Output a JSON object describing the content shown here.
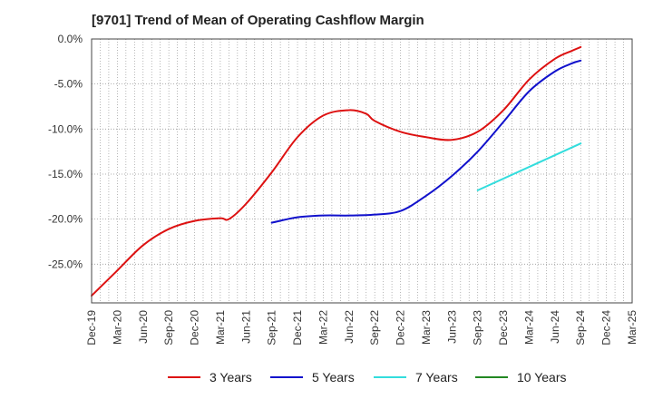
{
  "chart_data": {
    "type": "line",
    "title": "[9701]  Trend of Mean of Operating Cashflow Margin",
    "xlabel": "",
    "ylabel": "",
    "x_ticks": [
      "Dec-19",
      "Mar-20",
      "Jun-20",
      "Sep-20",
      "Dec-20",
      "Mar-21",
      "Jun-21",
      "Sep-21",
      "Dec-21",
      "Mar-22",
      "Jun-22",
      "Sep-22",
      "Dec-22",
      "Mar-23",
      "Jun-23",
      "Sep-23",
      "Dec-23",
      "Mar-24",
      "Jun-24",
      "Sep-24",
      "Dec-24",
      "Mar-25"
    ],
    "y_ticks": [
      "0.0%",
      "-5.0%",
      "-10.0%",
      "-15.0%",
      "-20.0%",
      "-25.0%"
    ],
    "y_tick_values": [
      0,
      -5,
      -10,
      -15,
      -20,
      -25
    ],
    "ylim": [
      -29.3,
      0
    ],
    "grid": true,
    "legend_position": "bottom",
    "series": [
      {
        "name": "3 Years",
        "color": "#dd1111",
        "x": [
          "Dec-19",
          "Mar-20",
          "Jun-20",
          "Sep-20",
          "Dec-20",
          "Mar-21",
          "Apr-21",
          "Jun-21",
          "Sep-21",
          "Dec-21",
          "Mar-22",
          "Jun-22",
          "Aug-22",
          "Sep-22",
          "Dec-22",
          "Mar-23",
          "Jun-23",
          "Sep-23",
          "Dec-23",
          "Mar-24",
          "Jun-24",
          "Aug-24",
          "Sep-24"
        ],
        "values": [
          -28.5,
          -25.7,
          -22.9,
          -21.1,
          -20.2,
          -19.9,
          -20.0,
          -18.3,
          -14.8,
          -10.9,
          -8.5,
          -7.9,
          -8.3,
          -9.1,
          -10.3,
          -10.9,
          -11.2,
          -10.3,
          -7.9,
          -4.5,
          -2.2,
          -1.3,
          -0.9
        ]
      },
      {
        "name": "5 Years",
        "color": "#1111cc",
        "x": [
          "Sep-21",
          "Dec-21",
          "Mar-22",
          "Jun-22",
          "Sep-22",
          "Dec-22",
          "Mar-23",
          "Jun-23",
          "Sep-23",
          "Dec-23",
          "Mar-24",
          "Jun-24",
          "Aug-24",
          "Sep-24"
        ],
        "values": [
          -20.4,
          -19.8,
          -19.6,
          -19.6,
          -19.5,
          -19.1,
          -17.4,
          -15.2,
          -12.5,
          -9.2,
          -5.8,
          -3.6,
          -2.7,
          -2.4
        ]
      },
      {
        "name": "7 Years",
        "color": "#33dddd",
        "x": [
          "Sep-23",
          "Sep-24"
        ],
        "values": [
          -16.8,
          -11.6
        ]
      },
      {
        "name": "10 Years",
        "color": "#228822",
        "x": [],
        "values": []
      }
    ]
  }
}
